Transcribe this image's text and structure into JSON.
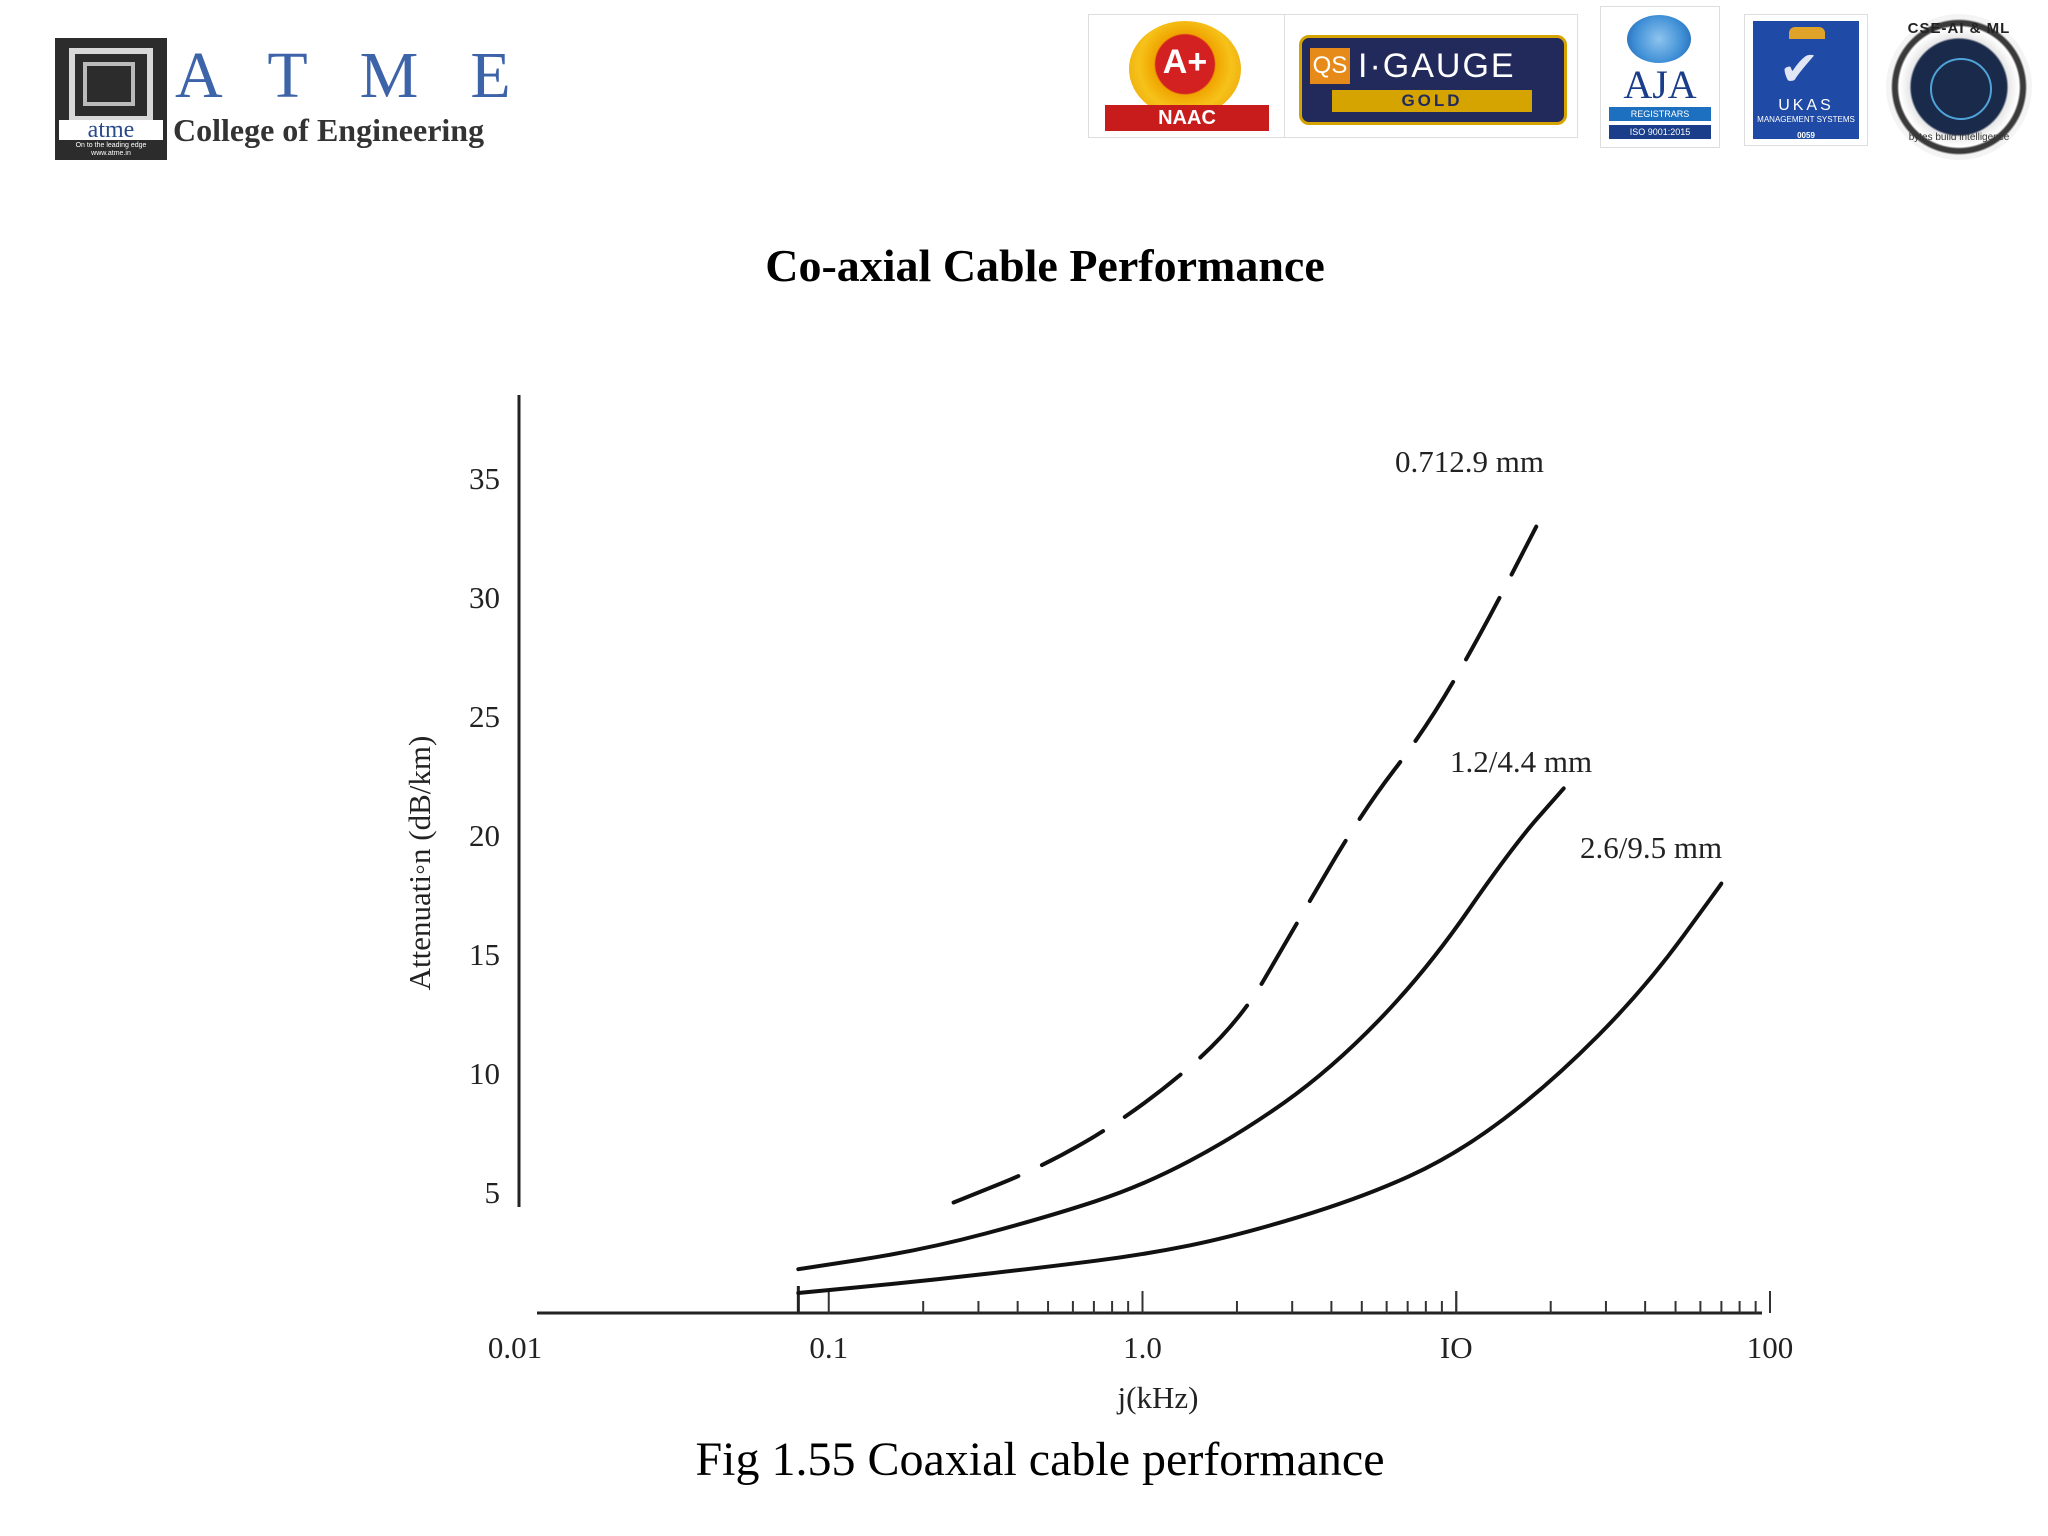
{
  "header": {
    "college_logo": {
      "atme_small": "atme",
      "tagline": "On to the leading edge www.atme.in",
      "big_letters": "ATME",
      "college_name": "College of Engineering"
    },
    "badges": {
      "naac_grade": "A+",
      "naac_label": "NAAC",
      "qs_label": "QS",
      "qs_igauge": "I·GAUGE",
      "qs_gold": "GOLD",
      "aja_label": "AJA",
      "aja_registrars": "REGISTRARS",
      "aja_iso": "ISO 9001:2015",
      "ukas_label": "UKAS",
      "ukas_sub": "MANAGEMENT SYSTEMS",
      "ukas_number": "0059",
      "cse_label": "CSE-AI & ML",
      "cse_sub": "bytes build intelligence"
    }
  },
  "slide": {
    "title": "Co-axial Cable Performance",
    "caption": "Fig 1.55 Coaxial cable performance"
  },
  "chart_data": {
    "type": "line",
    "title": "",
    "xlabel": "j(kHz)",
    "ylabel": "Attenuati◦n (dB/km)",
    "x_scale": "log",
    "xlim": [
      0.01,
      100
    ],
    "ylim": [
      0,
      35
    ],
    "x_tick_labels": [
      "0.01",
      "0.1",
      "1.0",
      "IO",
      "100"
    ],
    "x_tick_values": [
      0.01,
      0.1,
      1,
      10,
      100
    ],
    "y_tick_labels": [
      "5",
      "10",
      "15",
      "20",
      "25",
      "30",
      "35"
    ],
    "y_tick_values": [
      5,
      10,
      15,
      20,
      25,
      30,
      35
    ],
    "grid": false,
    "legend": "none",
    "series": [
      {
        "name": "0.712.9 mm",
        "x": [
          0.25,
          0.5,
          1.0,
          2.0,
          3.0,
          5.0,
          8.0,
          12.0,
          18.0
        ],
        "y": [
          4.6,
          6.2,
          8.6,
          12.0,
          16.0,
          21.0,
          24.5,
          28.5,
          33.0
        ]
      },
      {
        "name": "1.2/4.4 mm",
        "x": [
          0.08,
          0.2,
          0.5,
          1.0,
          2.0,
          4.0,
          8.0,
          15.0,
          22.0
        ],
        "y": [
          1.8,
          2.6,
          4.0,
          5.3,
          7.4,
          10.2,
          14.3,
          19.5,
          22.0
        ]
      },
      {
        "name": "2.6/9.5 mm",
        "x": [
          0.08,
          0.2,
          0.5,
          1.0,
          2.0,
          5.0,
          10.0,
          20.0,
          40.0,
          70.0
        ],
        "y": [
          0.8,
          1.3,
          1.9,
          2.4,
          3.2,
          4.8,
          6.6,
          9.6,
          13.6,
          18.0
        ]
      }
    ]
  }
}
